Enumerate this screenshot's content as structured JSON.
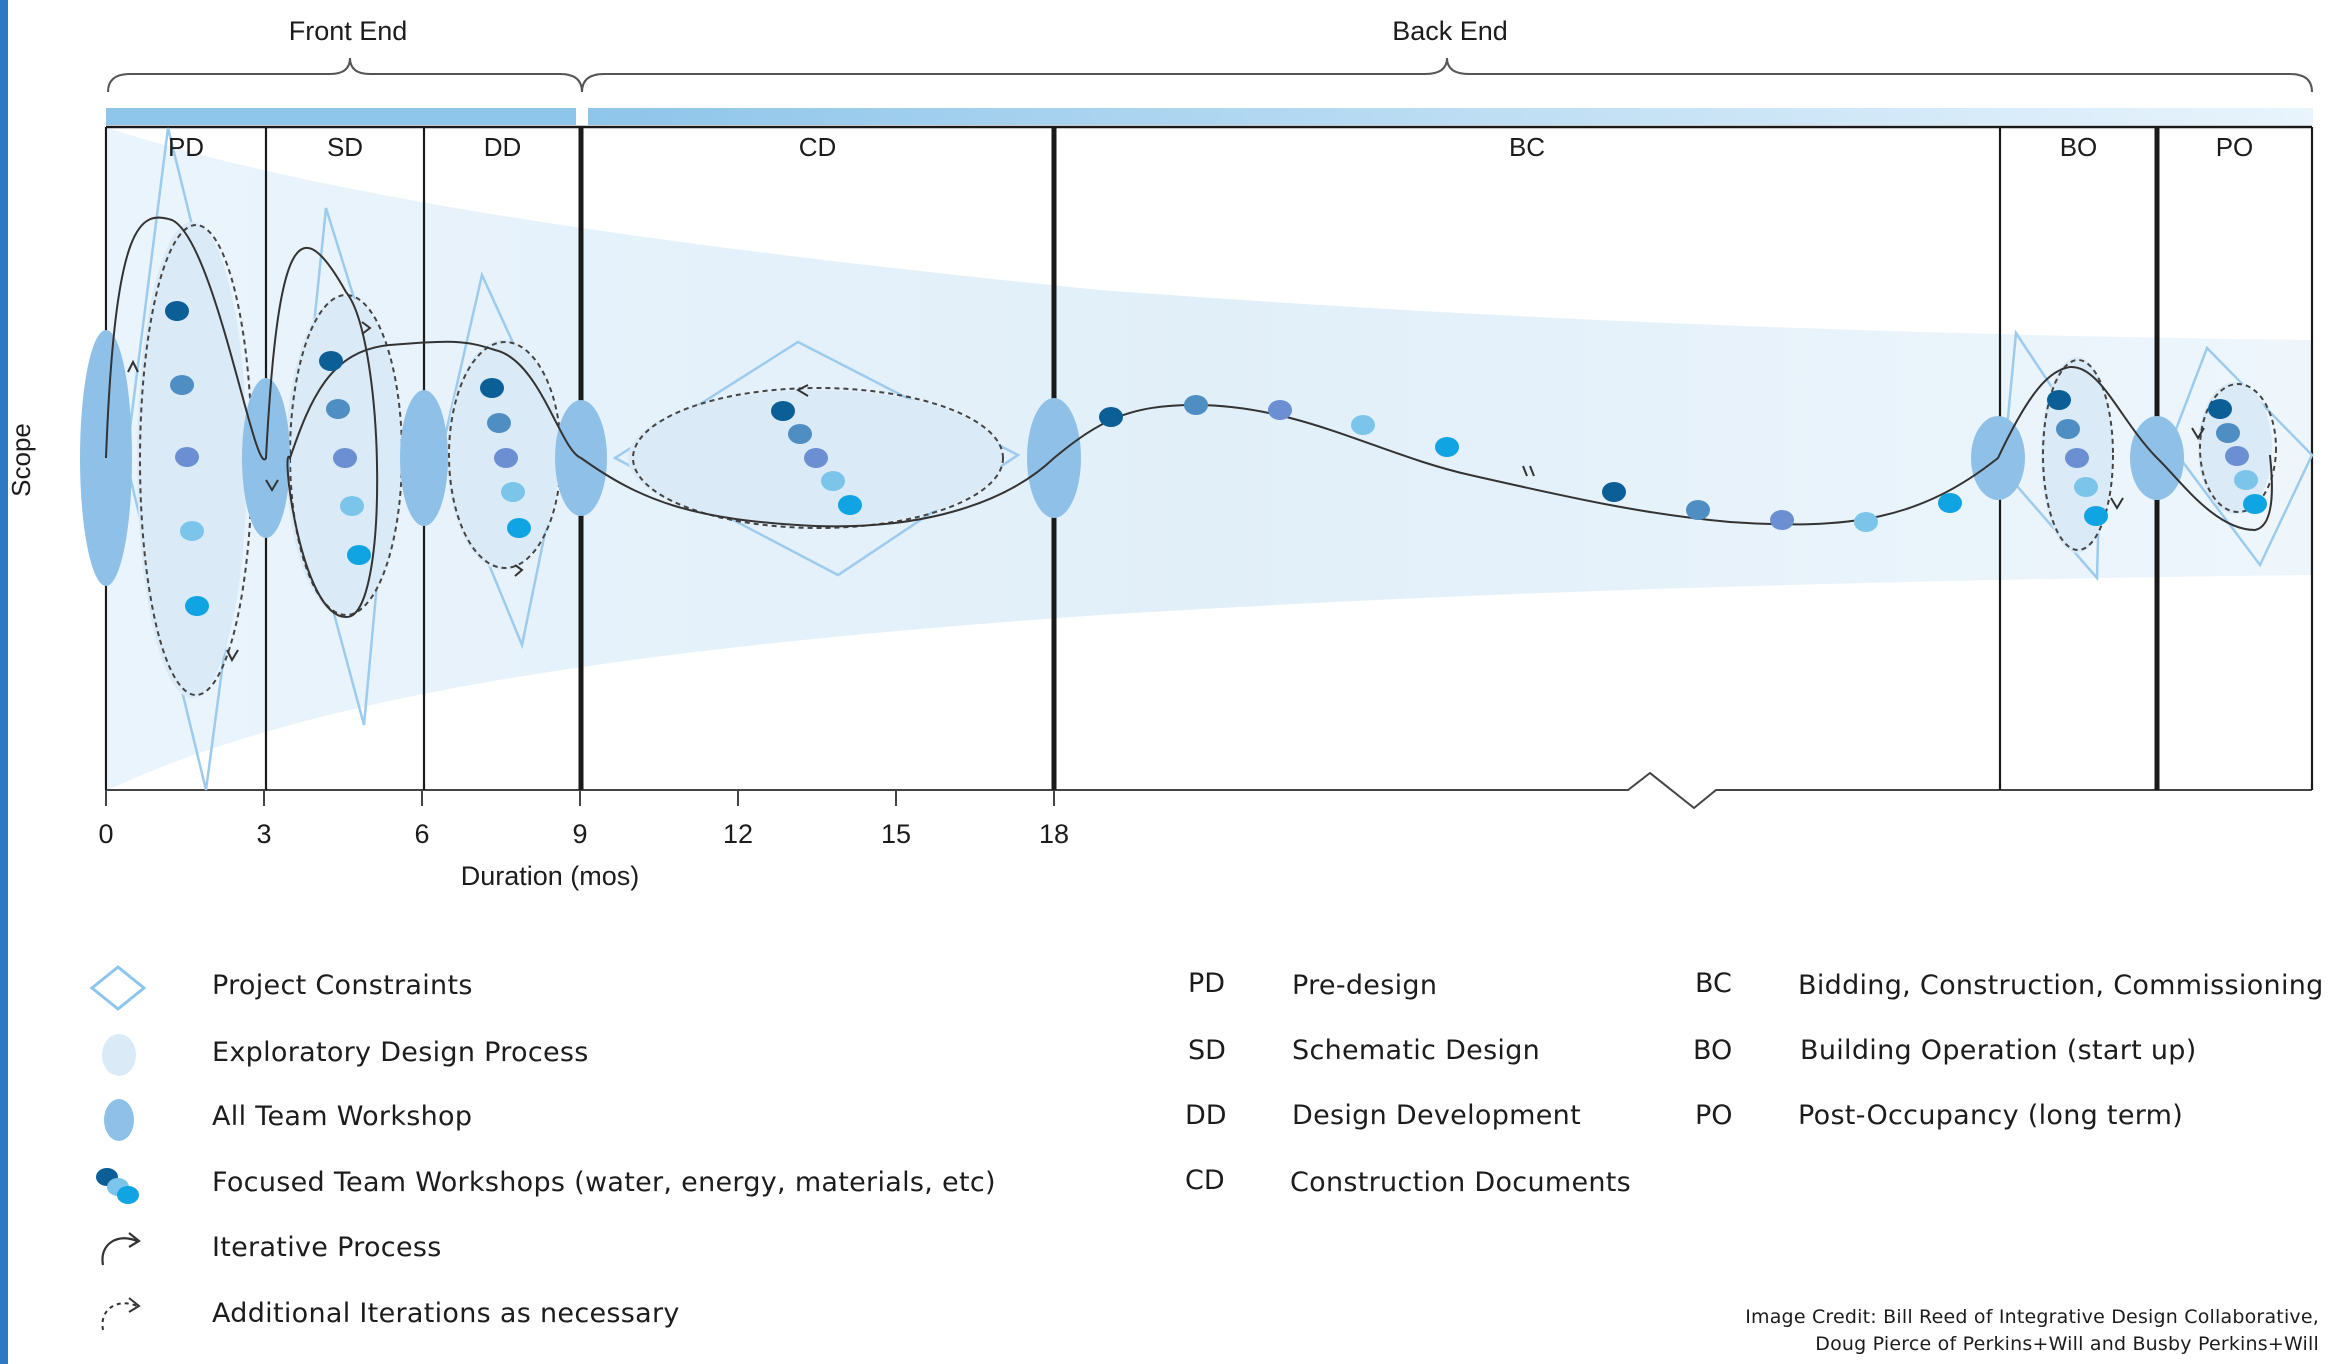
{
  "colors": {
    "accent": "#8ec5ea",
    "edge_stripe": "#2e79c2",
    "funnel": "#e6f2fb",
    "exploratory": "#dbeaf7",
    "workshop": "#8fc1e8",
    "constraint_stroke": "#9ccbee",
    "dots": [
      "#0b5e96",
      "#4f8ec3",
      "#6b8fd2",
      "#7cc5ea",
      "#11a4e3"
    ]
  },
  "header": {
    "front_end": "Front End",
    "back_end": "Back End"
  },
  "phases": [
    {
      "abbr": "PD",
      "name": "Pre-design"
    },
    {
      "abbr": "SD",
      "name": "Schematic Design"
    },
    {
      "abbr": "DD",
      "name": "Design Development"
    },
    {
      "abbr": "CD",
      "name": "Construction Documents"
    },
    {
      "abbr": "BC",
      "name": "Bidding, Construction, Commissioning"
    },
    {
      "abbr": "BO",
      "name": "Building Operation (start up)"
    },
    {
      "abbr": "PO",
      "name": "Post-Occupancy (long term)"
    }
  ],
  "axis": {
    "x_label": "Duration (mos)",
    "y_label": "Scope",
    "ticks": [
      "0",
      "3",
      "6",
      "9",
      "12",
      "15",
      "18"
    ]
  },
  "legend": [
    {
      "icon": "diamond-icon",
      "label": "Project Constraints"
    },
    {
      "icon": "light-ellipse-icon",
      "label": "Exploratory Design Process"
    },
    {
      "icon": "ellipse-icon",
      "label": "All Team Workshop"
    },
    {
      "icon": "dots-cluster-icon",
      "label": "Focused Team Workshops (water, energy, materials, etc)"
    },
    {
      "icon": "curved-arrow-icon",
      "label": "Iterative Process"
    },
    {
      "icon": "dashed-curved-arrow-icon",
      "label": "Additional Iterations as necessary"
    }
  ],
  "credit": {
    "line1": "Image Credit: Bill Reed of Integrative Design Collaborative,",
    "line2": "Doug Pierce of Perkins+Will and Busby Perkins+Will"
  }
}
